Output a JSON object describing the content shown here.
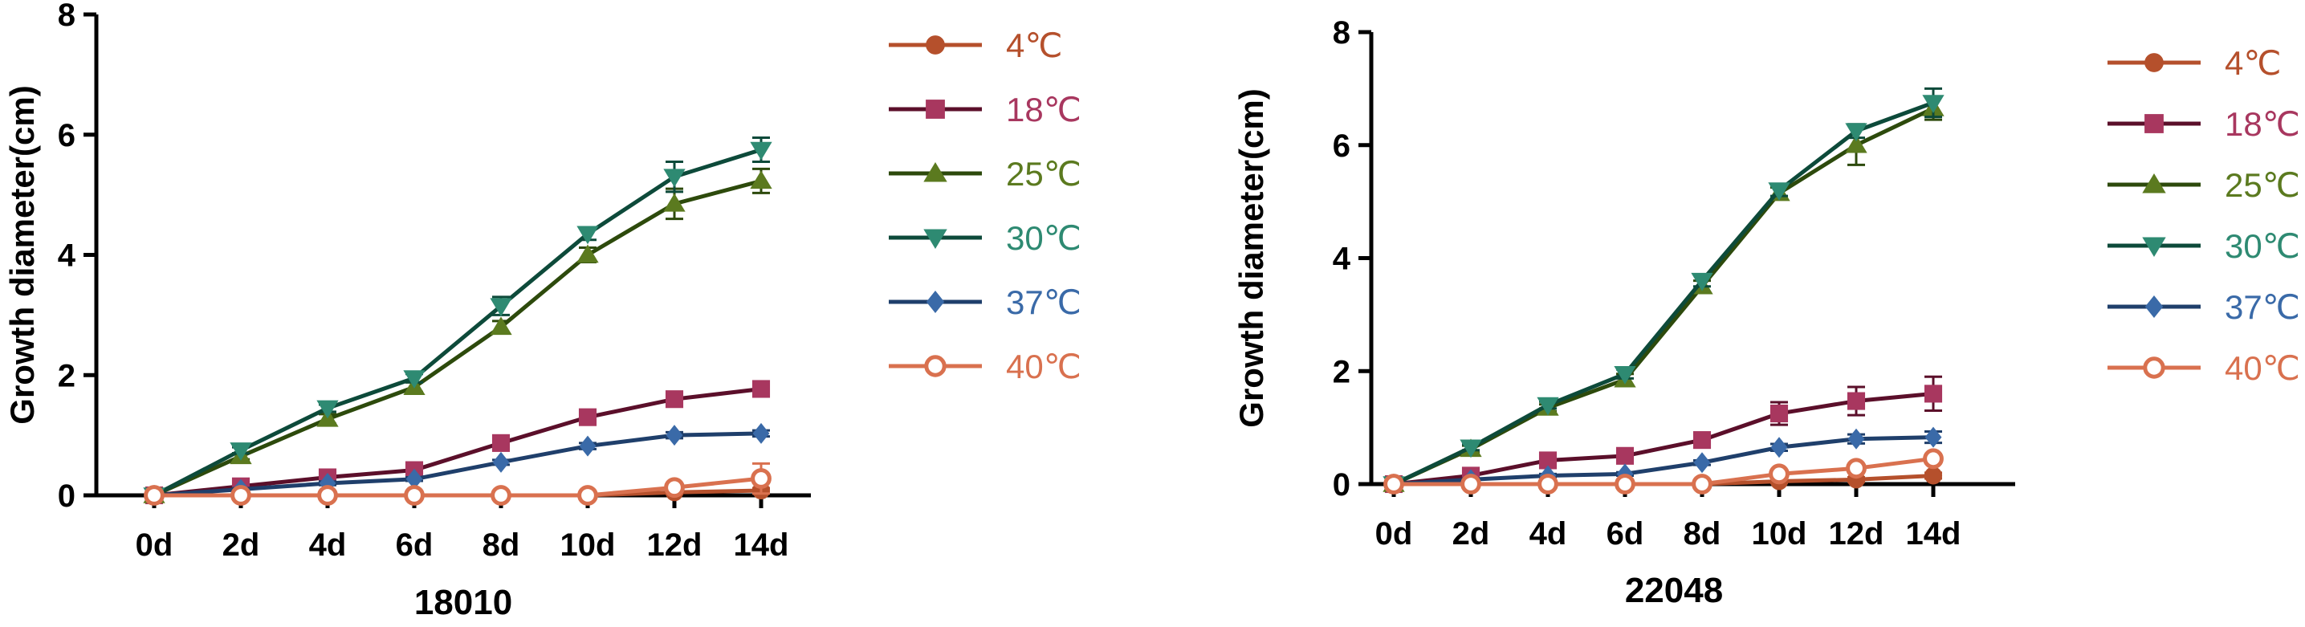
{
  "chart_data": [
    {
      "type": "line",
      "title": "18010",
      "xlabel": "",
      "ylabel": "Growth diameter(cm)",
      "ylim": [
        0,
        8
      ],
      "yticks": [
        "0",
        "2",
        "4",
        "6",
        "8"
      ],
      "categories": [
        "0d",
        "2d",
        "4d",
        "6d",
        "8d",
        "10d",
        "12d",
        "14d"
      ],
      "legend_position": "right",
      "grid": false,
      "series": [
        {
          "name": "4℃",
          "color": "#b5502c",
          "marker": "circle",
          "values": [
            0,
            0,
            0,
            0,
            0,
            0,
            0.05,
            0.08
          ],
          "errors": [
            0,
            0,
            0,
            0,
            0,
            0,
            0.03,
            0.04
          ]
        },
        {
          "name": "18℃",
          "color": "#a8375f",
          "line_color": "#5b0f2a",
          "marker": "square",
          "values": [
            0,
            0.15,
            0.3,
            0.42,
            0.87,
            1.3,
            1.6,
            1.77
          ],
          "errors": [
            0,
            0.03,
            0.04,
            0.05,
            0.07,
            0.08,
            0.08,
            0.09
          ]
        },
        {
          "name": "25℃",
          "color": "#5b7a1f",
          "line_color": "#2d4a0c",
          "marker": "triangle-up",
          "values": [
            0,
            0.65,
            1.27,
            1.8,
            2.8,
            4.0,
            4.85,
            5.23
          ],
          "errors": [
            0,
            0.05,
            0.08,
            0.08,
            0.1,
            0.12,
            0.25,
            0.2
          ]
        },
        {
          "name": "30℃",
          "color": "#2e8a72",
          "line_color": "#0d4a3a",
          "marker": "triangle-down",
          "values": [
            0,
            0.75,
            1.45,
            1.95,
            3.15,
            4.35,
            5.3,
            5.75
          ],
          "errors": [
            0,
            0.05,
            0.06,
            0.07,
            0.15,
            0.1,
            0.25,
            0.2
          ]
        },
        {
          "name": "37℃",
          "color": "#3a6aa8",
          "line_color": "#1f3f6b",
          "marker": "diamond",
          "values": [
            0,
            0.1,
            0.2,
            0.27,
            0.55,
            0.82,
            1.0,
            1.03
          ],
          "errors": [
            0,
            0.02,
            0.03,
            0.03,
            0.04,
            0.05,
            0.05,
            0.05
          ]
        },
        {
          "name": "40℃",
          "color": "#d9714f",
          "marker": "circle-open",
          "values": [
            0,
            0,
            0,
            0,
            0,
            0,
            0.13,
            0.28
          ],
          "errors": [
            0,
            0,
            0,
            0,
            0,
            0,
            0.05,
            0.25
          ]
        }
      ]
    },
    {
      "type": "line",
      "title": "22048",
      "xlabel": "",
      "ylabel": "Growth diameter(cm)",
      "ylim": [
        0,
        8
      ],
      "yticks": [
        "0",
        "2",
        "4",
        "6",
        "8"
      ],
      "categories": [
        "0d",
        "2d",
        "4d",
        "6d",
        "8d",
        "10d",
        "12d",
        "14d"
      ],
      "legend_position": "right",
      "grid": false,
      "series": [
        {
          "name": "4℃",
          "color": "#b5502c",
          "marker": "circle",
          "values": [
            0,
            0,
            0,
            0,
            0,
            0.05,
            0.08,
            0.15
          ],
          "errors": [
            0,
            0,
            0,
            0,
            0,
            0.03,
            0.04,
            0.05
          ]
        },
        {
          "name": "18℃",
          "color": "#a8375f",
          "line_color": "#5b0f2a",
          "marker": "square",
          "values": [
            0,
            0.15,
            0.42,
            0.5,
            0.78,
            1.25,
            1.47,
            1.6
          ],
          "errors": [
            0,
            0.05,
            0.06,
            0.06,
            0.08,
            0.2,
            0.25,
            0.3
          ]
        },
        {
          "name": "25℃",
          "color": "#5b7a1f",
          "line_color": "#2d4a0c",
          "marker": "triangle-up",
          "values": [
            0,
            0.62,
            1.35,
            1.85,
            3.5,
            5.15,
            6.0,
            6.65
          ],
          "errors": [
            0,
            0.06,
            0.06,
            0.1,
            0.1,
            0.1,
            0.35,
            0.2
          ]
        },
        {
          "name": "30℃",
          "color": "#2e8a72",
          "line_color": "#0d4a3a",
          "marker": "triangle-down",
          "values": [
            0,
            0.65,
            1.4,
            1.95,
            3.6,
            5.2,
            6.25,
            6.75
          ],
          "errors": [
            0,
            0.05,
            0.06,
            0.08,
            0.1,
            0.1,
            0.12,
            0.25
          ]
        },
        {
          "name": "37℃",
          "color": "#3a6aa8",
          "line_color": "#1f3f6b",
          "marker": "diamond",
          "values": [
            0,
            0.08,
            0.15,
            0.18,
            0.38,
            0.65,
            0.8,
            0.83
          ],
          "errors": [
            0,
            0.02,
            0.03,
            0.03,
            0.04,
            0.06,
            0.08,
            0.1
          ]
        },
        {
          "name": "40℃",
          "color": "#d9714f",
          "marker": "circle-open",
          "values": [
            0,
            0,
            0,
            0,
            0,
            0.18,
            0.28,
            0.45
          ],
          "errors": [
            0,
            0,
            0,
            0,
            0,
            0.05,
            0.06,
            0.08
          ]
        }
      ]
    }
  ]
}
